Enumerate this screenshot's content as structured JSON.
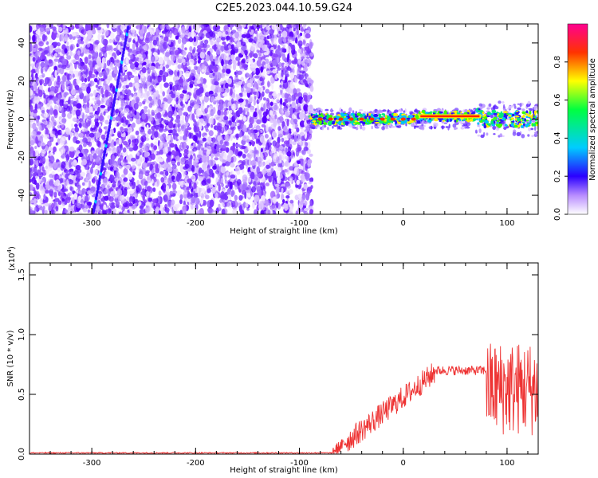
{
  "title": "C2E5.2023.044.10.59.G24",
  "chart_data": [
    {
      "type": "heatmap",
      "xlabel": "Height of straight line (km)",
      "ylabel": "Frequency (Hz)",
      "xlim": [
        -360,
        130
      ],
      "ylim": [
        -50,
        50
      ],
      "xticks": [
        -300,
        -200,
        -100,
        0,
        100
      ],
      "yticks": [
        -40,
        -20,
        0,
        20,
        40
      ],
      "colorbar": {
        "label": "Normalized spectral amplitude",
        "range": [
          0.0,
          1.0
        ],
        "ticks": [
          0.0,
          0.2,
          0.4,
          0.6,
          0.8
        ]
      },
      "noise_region_x": [
        -360,
        -88
      ],
      "diagonal_streak": {
        "x": [
          -298,
          -265
        ],
        "y": [
          -48,
          48
        ]
      },
      "signal_band": {
        "x": [
          -90,
          130
        ],
        "center_frequency": 0,
        "strong_segment_x": [
          15,
          75
        ]
      }
    },
    {
      "type": "line",
      "xlabel": "Height of straight line (km)",
      "ylabel": "SNR (10 * v/v)",
      "yscale_label": "(x10",
      "yscale_exp": "4",
      "yscale_close": ")",
      "xlim": [
        -360,
        130
      ],
      "ylim": [
        0,
        1.6
      ],
      "xticks": [
        -300,
        -200,
        -100,
        0,
        100
      ],
      "yticks": [
        "0.0",
        "0.5",
        "1.0",
        "1.5"
      ],
      "series": [
        {
          "color": "#ee3333",
          "segments": [
            {
              "x": [
                -360,
                -68
              ],
              "y": [
                0.01,
                0.01
              ],
              "noise": 0.005
            },
            {
              "x": [
                -68,
                -55
              ],
              "y": [
                0.02,
                0.1
              ],
              "noise": 0.05
            },
            {
              "x": [
                -55,
                30
              ],
              "y": [
                0.1,
                0.68
              ],
              "noise": 0.1
            },
            {
              "x": [
                30,
                80
              ],
              "y": [
                0.7,
                0.7
              ],
              "noise": 0.04
            },
            {
              "x": [
                80,
                130
              ],
              "y": [
                0.55,
                0.55
              ],
              "noise": 0.4
            }
          ]
        }
      ]
    }
  ]
}
